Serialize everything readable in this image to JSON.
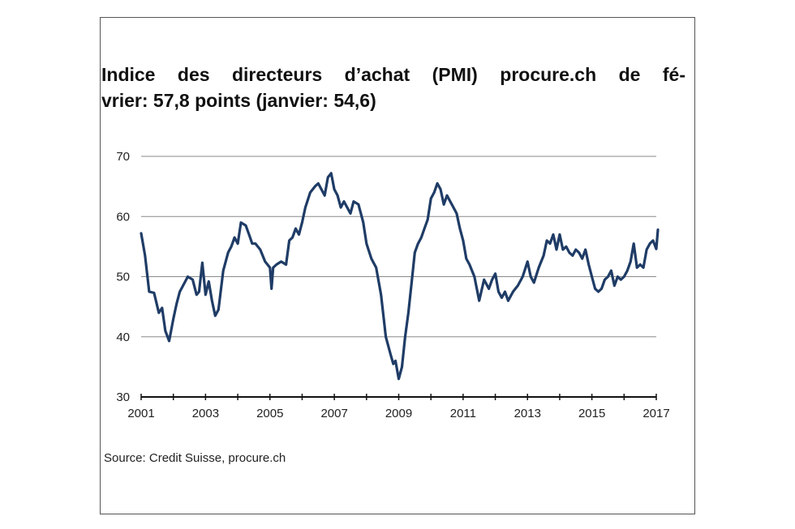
{
  "title_line1": "Indice des directeurs d’achat (PMI) procure.ch de fé-",
  "title_line2": "vrier: 57,8 points (janvier: 54,6)",
  "source": "Source: Credit Suisse, procure.ch",
  "colors": {
    "line": "#1f3c66",
    "grid": "#8a8a8a",
    "axis": "#111111"
  },
  "chart_data": {
    "type": "line",
    "title": "Indice des directeurs d’achat (PMI) procure.ch de février: 57,8 points (janvier: 54,6)",
    "xlabel": "",
    "ylabel": "",
    "xlim": [
      2001,
      2017
    ],
    "ylim": [
      30,
      70
    ],
    "x_ticks": [
      "2001",
      "2003",
      "2005",
      "2007",
      "2009",
      "2011",
      "2013",
      "2015",
      "2017"
    ],
    "y_ticks": [
      "30",
      "40",
      "50",
      "60",
      "70"
    ],
    "grid": "horizontal",
    "legend": "none",
    "series": [
      {
        "x": [
          2001.0,
          2001.12,
          2001.25,
          2001.4,
          2001.55,
          2001.65,
          2001.75,
          2001.87,
          2002.0,
          2002.1,
          2002.2,
          2002.3,
          2002.45,
          2002.6,
          2002.72,
          2002.8,
          2002.9,
          2003.0,
          2003.1,
          2003.2,
          2003.3,
          2003.4,
          2003.55,
          2003.7,
          2003.8,
          2003.9,
          2004.0,
          2004.1,
          2004.25,
          2004.35,
          2004.45,
          2004.55,
          2004.7,
          2004.85,
          2005.0,
          2005.05,
          2005.1,
          2005.2,
          2005.35,
          2005.5,
          2005.6,
          2005.7,
          2005.8,
          2005.9,
          2006.0,
          2006.1,
          2006.25,
          2006.4,
          2006.5,
          2006.6,
          2006.7,
          2006.8,
          2006.9,
          2007.0,
          2007.1,
          2007.2,
          2007.3,
          2007.4,
          2007.5,
          2007.6,
          2007.75,
          2007.9,
          2008.0,
          2008.15,
          2008.3,
          2008.45,
          2008.6,
          2008.75,
          2008.83,
          2008.9,
          2009.0,
          2009.1,
          2009.2,
          2009.3,
          2009.4,
          2009.5,
          2009.6,
          2009.7,
          2009.8,
          2009.9,
          2010.0,
          2010.1,
          2010.2,
          2010.3,
          2010.4,
          2010.5,
          2010.6,
          2010.7,
          2010.8,
          2010.9,
          2011.0,
          2011.1,
          2011.2,
          2011.35,
          2011.5,
          2011.65,
          2011.8,
          2011.9,
          2012.0,
          2012.1,
          2012.2,
          2012.3,
          2012.4,
          2012.55,
          2012.7,
          2012.85,
          2013.0,
          2013.1,
          2013.2,
          2013.35,
          2013.5,
          2013.6,
          2013.7,
          2013.8,
          2013.9,
          2014.0,
          2014.1,
          2014.2,
          2014.3,
          2014.4,
          2014.5,
          2014.6,
          2014.7,
          2014.8,
          2014.9,
          2015.0,
          2015.1,
          2015.2,
          2015.3,
          2015.4,
          2015.5,
          2015.6,
          2015.7,
          2015.8,
          2015.9,
          2016.0,
          2016.1,
          2016.2,
          2016.3,
          2016.4,
          2016.5,
          2016.6,
          2016.7,
          2016.8,
          2016.9,
          2017.0,
          2017.05
        ],
        "values": [
          57.2,
          53.5,
          47.5,
          47.3,
          44.0,
          44.8,
          41.0,
          39.3,
          43.0,
          45.5,
          47.5,
          48.5,
          50.0,
          49.5,
          47.0,
          47.5,
          52.3,
          47.0,
          49.2,
          46.0,
          43.5,
          44.5,
          51.0,
          54.0,
          55.0,
          56.5,
          55.5,
          59.0,
          58.5,
          57.0,
          55.5,
          55.5,
          54.5,
          52.5,
          51.5,
          48.0,
          51.5,
          52.0,
          52.5,
          52.0,
          56.0,
          56.5,
          58.0,
          57.0,
          59.0,
          61.5,
          64.0,
          65.0,
          65.5,
          64.5,
          63.5,
          66.5,
          67.2,
          64.5,
          63.5,
          61.5,
          62.5,
          61.5,
          60.5,
          62.5,
          62.0,
          59.0,
          55.5,
          53.0,
          51.5,
          47.0,
          40.0,
          37.0,
          35.5,
          36.0,
          33.0,
          35.0,
          40.0,
          44.0,
          49.0,
          54.0,
          55.5,
          56.5,
          58.0,
          59.5,
          63.0,
          64.0,
          65.5,
          64.5,
          62.0,
          63.5,
          62.5,
          61.5,
          60.5,
          58.0,
          56.0,
          53.0,
          52.0,
          50.0,
          46.0,
          49.5,
          48.0,
          49.5,
          50.5,
          47.5,
          46.5,
          47.5,
          46.0,
          47.5,
          48.5,
          50.0,
          52.5,
          50.0,
          49.0,
          51.5,
          53.5,
          56.0,
          55.5,
          57.0,
          54.5,
          57.0,
          54.5,
          55.0,
          54.0,
          53.5,
          54.5,
          54.0,
          53.0,
          54.5,
          52.0,
          50.0,
          48.0,
          47.5,
          48.0,
          49.5,
          50.0,
          51.0,
          48.5,
          50.0,
          49.5,
          50.0,
          51.0,
          52.5,
          55.5,
          51.5,
          52.0,
          51.5,
          54.5,
          55.5,
          56.0,
          54.6,
          57.8
        ]
      }
    ]
  }
}
